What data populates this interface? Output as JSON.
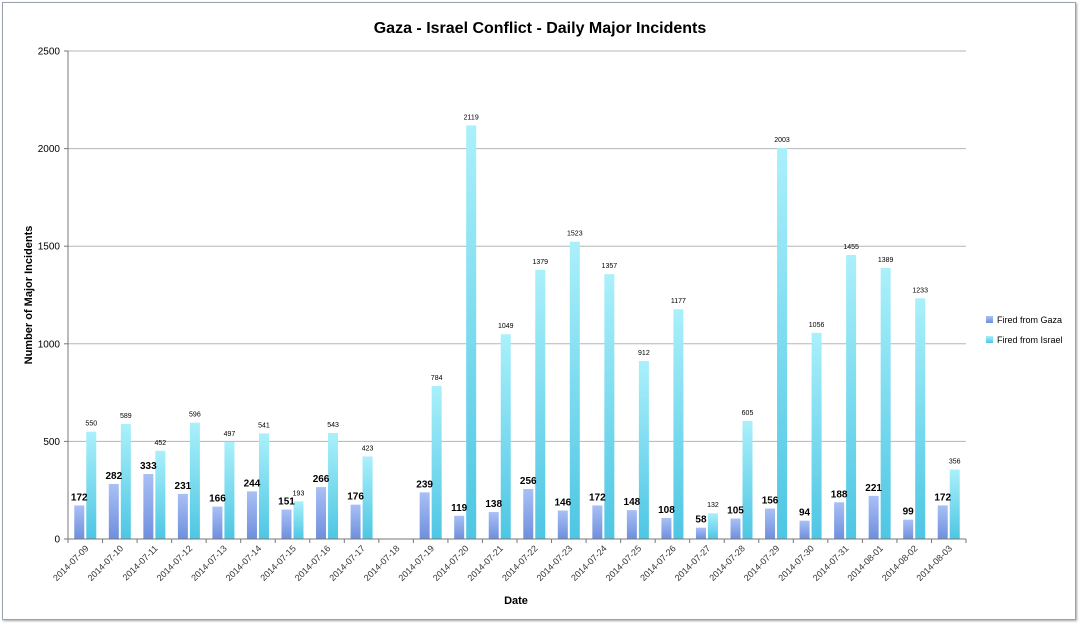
{
  "chart_data": {
    "type": "bar",
    "title": "Gaza - Israel Conflict - Daily Major Incidents",
    "xlabel": "Date",
    "ylabel": "Number of Major Incidents",
    "ylim": [
      0,
      2500
    ],
    "yticks": [
      0,
      500,
      1000,
      1500,
      2000,
      2500
    ],
    "grid": true,
    "legend_position": "right",
    "categories": [
      "2014-07-09",
      "2014-07-10",
      "2014-07-11",
      "2014-07-12",
      "2014-07-13",
      "2014-07-14",
      "2014-07-15",
      "2014-07-16",
      "2014-07-17",
      "2014-07-18",
      "2014-07-19",
      "2014-07-20",
      "2014-07-21",
      "2014-07-22",
      "2014-07-23",
      "2014-07-24",
      "2014-07-25",
      "2014-07-26",
      "2014-07-27",
      "2014-07-28",
      "2014-07-29",
      "2014-07-30",
      "2014-07-31",
      "2014-08-01",
      "2014-08-02",
      "2014-08-03"
    ],
    "series": [
      {
        "name": "Fired from Gaza",
        "color": "#7f9fe6",
        "values": [
          172,
          282,
          333,
          231,
          166,
          244,
          151,
          266,
          176,
          null,
          239,
          119,
          138,
          256,
          146,
          172,
          148,
          108,
          58,
          105,
          156,
          94,
          188,
          221,
          99,
          172
        ]
      },
      {
        "name": "Fired from Israel",
        "color": "#62d3ea",
        "values": [
          550,
          589,
          452,
          596,
          497,
          541,
          193,
          543,
          423,
          null,
          784,
          2119,
          1049,
          1379,
          1523,
          1357,
          912,
          1177,
          132,
          605,
          2003,
          1056,
          1455,
          1389,
          1233,
          356
        ]
      }
    ]
  }
}
